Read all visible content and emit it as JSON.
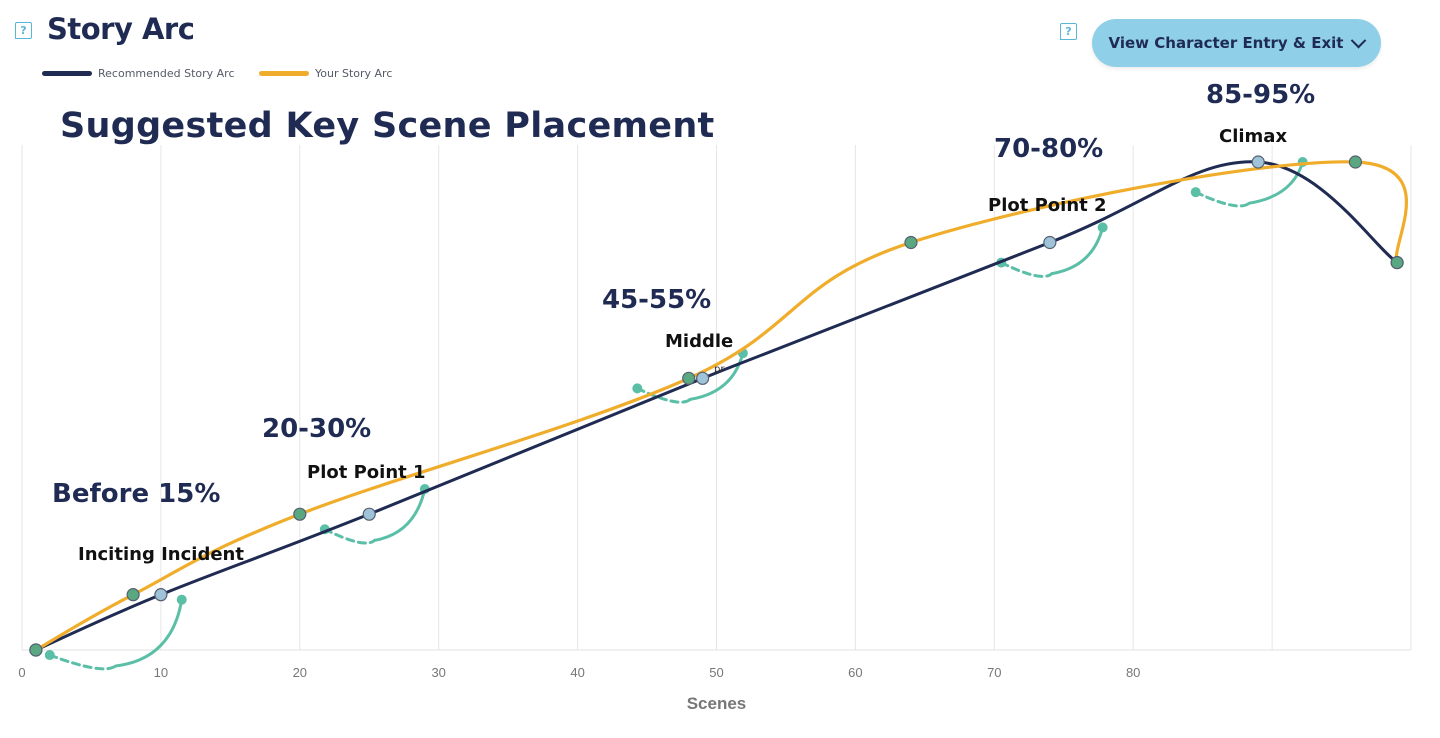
{
  "header": {
    "title": "Story Arc",
    "help_icon_glyph": "?",
    "view_button_label": "View Character Entry & Exit"
  },
  "legend": [
    {
      "label": "Recommended Story Arc",
      "color": "#1f2b52"
    },
    {
      "label": "Your Story Arc",
      "color": "#f0ad2c"
    }
  ],
  "chart_data": {
    "type": "line",
    "title": "Suggested Key Scene Placement",
    "xlabel": "Scenes",
    "ylabel": "",
    "xlim": [
      0,
      100
    ],
    "ylim": [
      0,
      100
    ],
    "x_ticks": [
      0,
      10,
      20,
      30,
      40,
      50,
      60,
      70,
      80
    ],
    "grid": "vertical",
    "series": [
      {
        "name": "Recommended Story Arc",
        "color": "#1f2b52",
        "points": [
          [
            1,
            0
          ],
          [
            10,
            11
          ],
          [
            25,
            27
          ],
          [
            49,
            54
          ],
          [
            74,
            81
          ],
          [
            89,
            97
          ],
          [
            99,
            77
          ]
        ]
      },
      {
        "name": "Your Story Arc",
        "color": "#f0ad2c",
        "points": [
          [
            1,
            0
          ],
          [
            8,
            11
          ],
          [
            20,
            27
          ],
          [
            48,
            54
          ],
          [
            64,
            81
          ],
          [
            96,
            97
          ],
          [
            99,
            77
          ]
        ]
      }
    ],
    "phases": [
      {
        "range": "Before 15%",
        "label": "Inciting Incident"
      },
      {
        "range": "20-30%",
        "label": "Plot Point 1"
      },
      {
        "range": "45-55%",
        "label": "Middle"
      },
      {
        "range": "70-80%",
        "label": "Plot Point 2"
      },
      {
        "range": "85-95%",
        "label": "Climax"
      }
    ],
    "stray_label": "pr"
  }
}
